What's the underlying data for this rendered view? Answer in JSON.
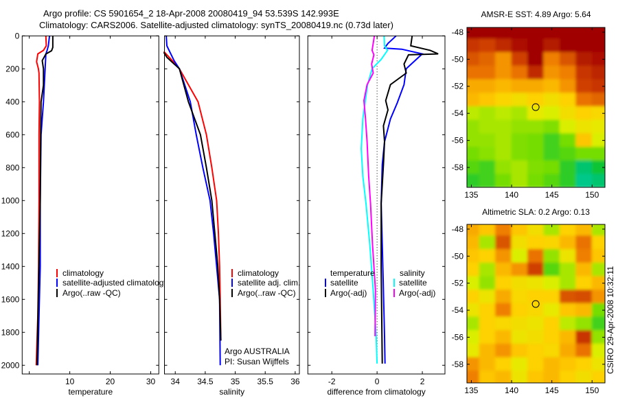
{
  "title": {
    "line1": "Argo profile: CS 5901654_2 18-Apr-2008 20080419_94 53.539S 142.993E",
    "line2": "Climatology: CARS2006. Satellite-adjusted climatology: synTS_20080419.nc (0.73d later)"
  },
  "credit": "CSIRO 29-Apr-2008 10:32:11",
  "colormap": [
    "#0040ff",
    "#0090ff",
    "#00d0d8",
    "#00c040",
    "#70dc00",
    "#e0f000",
    "#ffd000",
    "#f08000",
    "#cc3c00",
    "#a00000"
  ],
  "chart_data": [
    {
      "id": "temperature",
      "type": "line",
      "xlabel": "temperature",
      "xlim": [
        -1.76,
        32
      ],
      "ylim": [
        0,
        2053
      ],
      "xticks": [
        "0",
        "10",
        "20",
        "30"
      ],
      "xtick_values": [
        0,
        10,
        20,
        30
      ],
      "xtick_labels_shown": [
        "10",
        "20",
        "30"
      ],
      "yticks": [
        "0",
        "200",
        "400",
        "600",
        "800",
        "1000",
        "1200",
        "1400",
        "1600",
        "1800",
        "2000"
      ],
      "ytick_values": [
        0,
        200,
        400,
        600,
        800,
        1000,
        1200,
        1400,
        1600,
        1800,
        2000
      ],
      "series": [
        {
          "name": "climatology",
          "color": "#ff0000",
          "depth": [
            0,
            60,
            88,
            109,
            157,
            199,
            226,
            400,
            600,
            1000,
            1400,
            1700,
            2000
          ],
          "values": [
            4.1,
            4.2,
            3.5,
            2.1,
            1.8,
            2.25,
            2.4,
            2.5,
            2.4,
            2.4,
            2.3,
            2.1,
            1.7
          ]
        },
        {
          "name": "satellite-adjusted climatology",
          "color": "#0000ff",
          "depth": [
            0,
            60,
            88,
            110,
            200,
            400,
            600,
            800,
            1000,
            1400,
            1700,
            2000
          ],
          "values": [
            5.0,
            4.7,
            4.4,
            4.1,
            3.9,
            3.5,
            2.9,
            2.8,
            2.7,
            2.7,
            2.4,
            2.1
          ]
        },
        {
          "name": "Argo(..raw -QC)",
          "color": "#000000",
          "depth": [
            0,
            70,
            90,
            110,
            150,
            200,
            300,
            400,
            600,
            1000,
            1500,
            2000
          ],
          "values": [
            5.8,
            5.8,
            5.5,
            4.1,
            3.2,
            3.5,
            3.5,
            2.9,
            2.8,
            2.7,
            2.3,
            1.9
          ]
        }
      ],
      "legend": [
        "climatology",
        "satellite-adjusted climatology",
        "Argo(..raw -QC)"
      ]
    },
    {
      "id": "salinity",
      "type": "line",
      "xlabel": "salinity",
      "xlim": [
        33.82,
        36.07
      ],
      "ylim": [
        0,
        2053
      ],
      "xticks": [
        "34",
        "34.5",
        "35",
        "35.5",
        "36"
      ],
      "xtick_values": [
        34,
        34.5,
        35,
        35.5,
        36
      ],
      "series": [
        {
          "name": "climatology",
          "color": "#ff0000",
          "depth": [
            95,
            150,
            200,
            400,
            600,
            800,
            1000,
            1200,
            1400,
            1600,
            1850
          ],
          "values": [
            33.81,
            33.95,
            34.07,
            34.38,
            34.52,
            34.61,
            34.69,
            34.72,
            34.74,
            34.75,
            34.76
          ]
        },
        {
          "name": "satellite adj. clim.",
          "color": "#0000ff",
          "depth": [
            0,
            60,
            90,
            150,
            200,
            400,
            600,
            800,
            1000,
            1200,
            1400,
            1600,
            2000
          ],
          "values": [
            33.85,
            33.86,
            33.9,
            33.98,
            34.07,
            34.25,
            34.35,
            34.46,
            34.58,
            34.64,
            34.69,
            34.74,
            34.75
          ]
        },
        {
          "name": "Argo(..raw -QC)",
          "color": "#000000",
          "depth": [
            100,
            130,
            160,
            200,
            400,
            600,
            800,
            1000,
            1200,
            1400,
            1600,
            1850
          ],
          "values": [
            33.81,
            33.86,
            33.95,
            34.07,
            34.22,
            34.42,
            34.52,
            34.61,
            34.66,
            34.71,
            34.74,
            34.76
          ]
        }
      ],
      "legend": [
        "climatology",
        "satellite adj. clim.",
        "Argo(..raw -QC)"
      ],
      "annotation": [
        "Argo AUSTRALIA",
        "PI: Susan Wijffels"
      ]
    },
    {
      "id": "difference",
      "type": "line",
      "xlabel": "difference from climatology",
      "xlim": [
        -3.06,
        3.0
      ],
      "ylim": [
        0,
        2053
      ],
      "xticks": [
        "-2",
        "0",
        "2"
      ],
      "xtick_values": [
        -2,
        0,
        2
      ],
      "series": [
        {
          "name": "temperature satellite",
          "color": "#0000ff",
          "depth": [
            0,
            46,
            74,
            81,
            109,
            199,
            296,
            407,
            504,
            643,
            782,
            1018,
            1268,
            1546,
            1824,
            1990
          ],
          "values": [
            0.84,
            0.48,
            0.33,
            1.09,
            2.0,
            1.29,
            1.19,
            0.89,
            0.59,
            0.33,
            0.23,
            0.18,
            0.23,
            0.28,
            0.33,
            0.35
          ]
        },
        {
          "name": "temperature Argo(-adj)",
          "color": "#000000",
          "depth": [
            0,
            60,
            88,
            109,
            115,
            171,
            226,
            296,
            393,
            449,
            546,
            643,
            782,
            1018,
            1407,
            1990
          ],
          "values": [
            1.55,
            1.49,
            2.35,
            2.7,
            1.39,
            1.19,
            1.29,
            0.59,
            0.38,
            0.48,
            0.28,
            0.33,
            0.28,
            0.18,
            0.18,
            0.23
          ]
        },
        {
          "name": "salinity satellite",
          "color": "#00ffff",
          "depth": [
            0,
            60,
            88,
            143,
            199,
            296,
            504,
            685,
            852,
            1018,
            1268,
            1546,
            1824,
            1990
          ],
          "values": [
            0.31,
            0.33,
            0.46,
            0.18,
            -0.22,
            -0.42,
            -0.63,
            -0.7,
            -0.63,
            -0.49,
            -0.32,
            -0.17,
            -0.04,
            0.0
          ]
        },
        {
          "name": "salinity Argo(-adj)",
          "color": "#ff00ff",
          "depth": [
            0,
            88,
            115,
            171,
            226,
            296,
            393,
            504,
            643,
            852,
            1018,
            1268,
            1546,
            1824
          ],
          "values": [
            -0.12,
            -0.22,
            -0.14,
            -0.24,
            -0.17,
            -0.44,
            -0.58,
            -0.51,
            -0.44,
            -0.37,
            -0.29,
            -0.2,
            -0.07,
            -0.09
          ]
        }
      ],
      "legend_headers": [
        "temperature",
        "salinity"
      ],
      "legend": [
        "satellite",
        "Argo(-adj)",
        "satellite",
        "Argo(-adj)"
      ]
    },
    {
      "id": "sst_map",
      "type": "heatmap",
      "title": "AMSR-E SST: 4.89 Argo: 5.64",
      "xlim": [
        134.45,
        151.6
      ],
      "ylim": [
        -47.65,
        -59.47
      ],
      "xticks": [
        "135",
        "140",
        "145",
        "150"
      ],
      "xtick_values": [
        135,
        140,
        145,
        150
      ],
      "yticks": [
        "-48",
        "-50",
        "-52",
        "-54",
        "-56",
        "-58"
      ],
      "ytick_values": [
        -48,
        -50,
        -52,
        -54,
        -56,
        -58
      ],
      "lon": [
        135,
        137,
        139,
        141,
        143,
        145,
        147,
        149,
        151
      ],
      "lat": [
        -48,
        -49,
        -50,
        -51,
        -52,
        -53,
        -54,
        -55,
        -56,
        -57,
        -58,
        -59
      ],
      "z": [
        [
          1,
          1,
          1,
          1,
          1,
          1,
          1,
          1,
          1
        ],
        [
          0.9,
          0.88,
          0.92,
          0.97,
          1,
          0.95,
          1,
          1,
          1
        ],
        [
          0.85,
          0.82,
          0.75,
          0.88,
          1,
          0.78,
          0.85,
          0.95,
          0.97
        ],
        [
          0.8,
          0.8,
          0.75,
          0.8,
          0.92,
          0.75,
          0.78,
          0.9,
          0.93
        ],
        [
          0.72,
          0.72,
          0.7,
          0.72,
          0.72,
          0.7,
          0.75,
          0.88,
          0.9
        ],
        [
          0.7,
          0.68,
          0.65,
          0.62,
          0.66,
          0.62,
          0.66,
          0.8,
          0.82
        ],
        [
          0.52,
          0.5,
          0.52,
          0.5,
          0.58,
          0.55,
          0.62,
          0.66,
          0.64
        ],
        [
          0.48,
          0.5,
          0.5,
          0.48,
          0.48,
          0.46,
          0.55,
          0.6,
          0.58
        ],
        [
          0.48,
          0.48,
          0.5,
          0.46,
          0.45,
          0.4,
          0.45,
          0.68,
          0.55
        ],
        [
          0.45,
          0.47,
          0.5,
          0.46,
          0.45,
          0.4,
          0.42,
          0.45,
          0.45
        ],
        [
          0.42,
          0.4,
          0.48,
          0.5,
          0.46,
          0.45,
          0.38,
          0.3,
          0.35
        ],
        [
          0.38,
          0.4,
          0.45,
          0.5,
          0.45,
          0.42,
          0.38,
          0.28,
          0.3
        ]
      ],
      "marker": {
        "lon": 142.993,
        "lat": -53.539
      }
    },
    {
      "id": "sla_map",
      "type": "heatmap",
      "title": "Altimetric SLA: 0.2 Argo: 0.13",
      "xlim": [
        134.45,
        151.6
      ],
      "ylim": [
        -47.65,
        -59.38
      ],
      "xticks": [
        "135",
        "140",
        "145",
        "150"
      ],
      "xtick_values": [
        135,
        140,
        145,
        150
      ],
      "yticks": [
        "-48",
        "-50",
        "-52",
        "-54",
        "-56",
        "-58"
      ],
      "ytick_values": [
        -48,
        -50,
        -52,
        -54,
        -56,
        -58
      ],
      "lon": [
        135,
        137,
        139,
        141,
        143,
        145,
        147,
        149,
        151
      ],
      "lat": [
        -48,
        -49,
        -50,
        -51,
        -52,
        -53,
        -54,
        -55,
        -56,
        -57,
        -58,
        -59
      ],
      "z": [
        [
          0.72,
          0.68,
          0.78,
          0.68,
          0.62,
          0.5,
          0.66,
          0.7,
          0.5
        ],
        [
          0.7,
          0.5,
          0.85,
          0.62,
          0.66,
          0.65,
          0.7,
          0.8,
          0.66
        ],
        [
          0.68,
          0.66,
          0.75,
          0.55,
          0.8,
          0.48,
          0.6,
          0.78,
          0.68
        ],
        [
          0.66,
          0.5,
          0.7,
          0.75,
          0.88,
          0.42,
          0.5,
          0.7,
          0.5
        ],
        [
          0.55,
          0.48,
          0.66,
          0.62,
          0.6,
          0.55,
          0.5,
          0.66,
          0.7
        ],
        [
          0.66,
          0.6,
          0.72,
          0.64,
          0.66,
          0.66,
          0.85,
          0.86,
          0.75
        ],
        [
          0.6,
          0.66,
          0.78,
          0.66,
          0.64,
          0.58,
          0.68,
          0.7,
          0.45
        ],
        [
          0.5,
          0.66,
          0.64,
          0.62,
          0.6,
          0.66,
          0.52,
          0.48,
          0.4
        ],
        [
          0.55,
          0.66,
          0.7,
          0.6,
          0.62,
          0.66,
          0.7,
          0.9,
          0.48
        ],
        [
          0.58,
          0.7,
          0.75,
          0.68,
          0.66,
          0.64,
          0.72,
          0.8,
          0.55
        ],
        [
          0.75,
          0.7,
          0.66,
          0.58,
          0.66,
          0.7,
          0.68,
          0.66,
          0.6
        ],
        [
          0.78,
          0.68,
          0.7,
          0.6,
          0.68,
          0.7,
          0.66,
          0.62,
          0.66
        ]
      ],
      "marker": {
        "lon": 142.993,
        "lat": -53.539
      }
    }
  ]
}
